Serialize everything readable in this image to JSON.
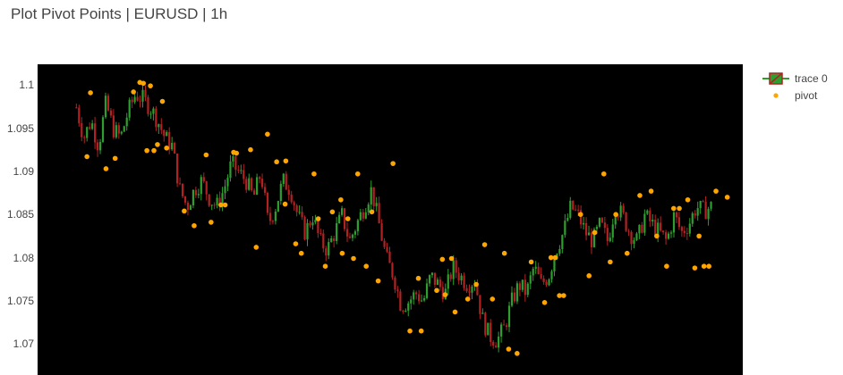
{
  "title": "Plot Pivot Points | EURUSD | 1h",
  "legend": {
    "trace_label": "trace 0",
    "pivot_label": "pivot"
  },
  "colors": {
    "background": "#000000",
    "up": "#2e9e2e",
    "down": "#b22222",
    "pivot": "#ffa500"
  },
  "chart_data": {
    "type": "candlestick",
    "title": "Plot Pivot Points | EURUSD | 1h",
    "ylim": [
      1.0665,
      1.1025
    ],
    "y_ticks": [
      "1.1",
      "1.095",
      "1.09",
      "1.085",
      "1.08",
      "1.075",
      "1.07"
    ],
    "y_tick_values": [
      1.1,
      1.095,
      1.09,
      1.085,
      1.08,
      1.075,
      1.07
    ],
    "close_path": [
      1.0975,
      1.094,
      1.096,
      1.093,
      1.098,
      1.095,
      1.094,
      1.097,
      1.099,
      1.0985,
      1.0975,
      1.096,
      1.094,
      1.093,
      1.088,
      1.086,
      1.088,
      1.089,
      1.087,
      1.086,
      1.088,
      1.091,
      1.09,
      1.089,
      1.087,
      1.09,
      1.084,
      1.086,
      1.089,
      1.088,
      1.085,
      1.083,
      1.085,
      1.082,
      1.081,
      1.083,
      1.085,
      1.082,
      1.084,
      1.086,
      1.088,
      1.084,
      1.08,
      1.078,
      1.0745,
      1.075,
      1.076,
      1.075,
      1.078,
      1.077,
      1.076,
      1.079,
      1.078,
      1.077,
      1.0775,
      1.073,
      1.071,
      1.0705,
      1.072,
      1.075,
      1.077,
      1.076,
      1.079,
      1.077,
      1.078,
      1.081,
      1.083,
      1.086,
      1.085,
      1.083,
      1.082,
      1.084,
      1.082,
      1.086,
      1.085,
      1.083,
      1.082,
      1.085,
      1.084,
      1.083,
      1.082,
      1.085,
      1.083,
      1.084,
      1.086,
      1.0855,
      1.086
    ],
    "pivot_series": {
      "name": "pivot",
      "values": [
        [
          0.075,
          1.0992
        ],
        [
          0.07,
          1.0918
        ],
        [
          0.097,
          1.0904
        ],
        [
          0.11,
          1.0916
        ],
        [
          0.136,
          1.0993
        ],
        [
          0.145,
          1.1004
        ],
        [
          0.15,
          1.1003
        ],
        [
          0.155,
          1.0925
        ],
        [
          0.16,
          1.1
        ],
        [
          0.165,
          1.0925
        ],
        [
          0.17,
          1.0932
        ],
        [
          0.177,
          1.0982
        ],
        [
          0.183,
          1.0928
        ],
        [
          0.208,
          1.0855
        ],
        [
          0.222,
          1.0838
        ],
        [
          0.239,
          1.092
        ],
        [
          0.246,
          1.0842
        ],
        [
          0.26,
          1.0862
        ],
        [
          0.266,
          1.0862
        ],
        [
          0.278,
          1.0923
        ],
        [
          0.282,
          1.0922
        ],
        [
          0.302,
          1.0926
        ],
        [
          0.31,
          1.0813
        ],
        [
          0.326,
          1.0944
        ],
        [
          0.339,
          1.0912
        ],
        [
          0.351,
          1.0863
        ],
        [
          0.352,
          1.0913
        ],
        [
          0.366,
          1.0817
        ],
        [
          0.374,
          1.0806
        ],
        [
          0.392,
          1.0898
        ],
        [
          0.398,
          1.0846
        ],
        [
          0.408,
          1.0791
        ],
        [
          0.418,
          1.0854
        ],
        [
          0.43,
          1.0868
        ],
        [
          0.432,
          1.0806
        ],
        [
          0.44,
          1.0846
        ],
        [
          0.448,
          1.08
        ],
        [
          0.454,
          1.0898
        ],
        [
          0.466,
          1.0791
        ],
        [
          0.474,
          1.0854
        ],
        [
          0.483,
          1.0774
        ],
        [
          0.504,
          1.091
        ],
        [
          0.528,
          1.0716
        ],
        [
          0.54,
          1.0777
        ],
        [
          0.544,
          1.0716
        ],
        [
          0.566,
          1.0763
        ],
        [
          0.574,
          1.0799
        ],
        [
          0.578,
          1.0758
        ],
        [
          0.587,
          1.08
        ],
        [
          0.592,
          1.0738
        ],
        [
          0.61,
          1.0753
        ],
        [
          0.622,
          1.077
        ],
        [
          0.634,
          1.0816
        ],
        [
          0.645,
          1.0753
        ],
        [
          0.662,
          1.0806
        ],
        [
          0.668,
          1.0695
        ],
        [
          0.68,
          1.069
        ],
        [
          0.7,
          1.0796
        ],
        [
          0.719,
          1.0749
        ],
        [
          0.728,
          1.0801
        ],
        [
          0.734,
          1.0801
        ],
        [
          0.74,
          1.0757
        ],
        [
          0.746,
          1.0757
        ],
        [
          0.77,
          1.0851
        ],
        [
          0.782,
          1.078
        ],
        [
          0.79,
          1.083
        ],
        [
          0.803,
          1.0898
        ],
        [
          0.812,
          1.0796
        ],
        [
          0.82,
          1.0851
        ],
        [
          0.836,
          1.0806
        ],
        [
          0.854,
          1.0873
        ],
        [
          0.87,
          1.0878
        ],
        [
          0.878,
          1.0826
        ],
        [
          0.892,
          1.0791
        ],
        [
          0.902,
          1.0858
        ],
        [
          0.91,
          1.0858
        ],
        [
          0.922,
          1.0868
        ],
        [
          0.932,
          1.0789
        ],
        [
          0.945,
          1.0791
        ],
        [
          0.952,
          1.0791
        ],
        [
          0.962,
          1.0878
        ],
        [
          0.938,
          1.0826
        ],
        [
          0.978,
          1.0871
        ]
      ]
    },
    "candle_series": {
      "name": "trace 0"
    }
  }
}
